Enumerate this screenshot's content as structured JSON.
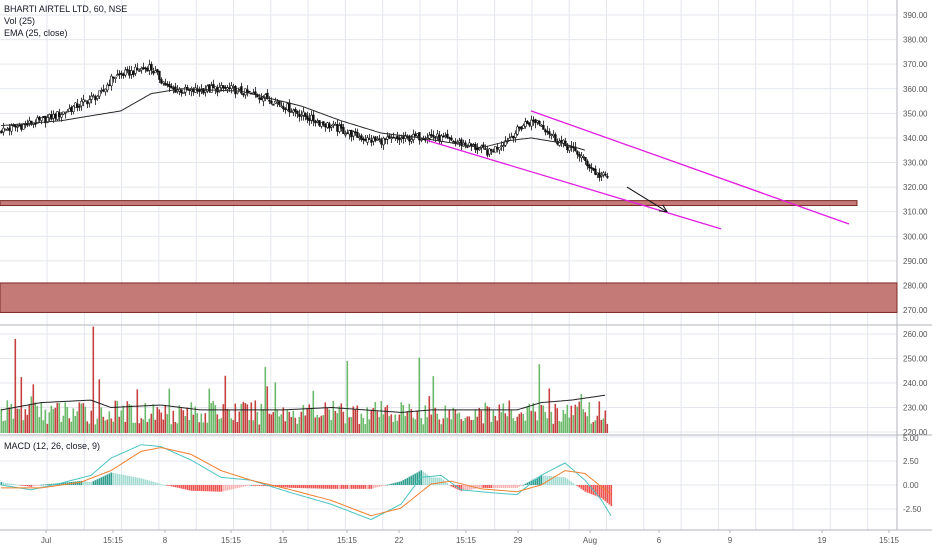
{
  "header": {
    "symbol_line": "BHARTI AIRTEL LTD, 60, NSE",
    "volume_label": "Vol (25)",
    "ema_label": "EMA (25, close)",
    "macd_label": "MACD (12, 26, close, 9)"
  },
  "colors": {
    "up": "#6cb96c",
    "down": "#c4413f",
    "ema": "#2a2a2a",
    "channel": "#e21ce0",
    "zone_fill": "#c47a76",
    "zone_border": "#7a2a28",
    "macd_line": "#4cc3c2",
    "signal_line": "#ef7f2f",
    "grid": "#e4e7ee",
    "axis_text": "#555555"
  },
  "chart_data": [
    {
      "type": "candlestick",
      "title": "BHARTI AIRTEL LTD, 60, NSE",
      "ylim": [
        255,
        394
      ],
      "y_ticks": [
        390,
        380,
        370,
        360,
        350,
        340,
        330,
        320,
        310,
        300,
        290,
        280,
        270
      ],
      "y_tick_labels": [
        "390.00",
        "380.00",
        "370.00",
        "360.00",
        "350.00",
        "340.00",
        "330.00",
        "320.00",
        "310.00",
        "300.00",
        "290.00",
        "280.00",
        "270.00"
      ],
      "x_tick_labels": [
        "Jul",
        "15:15",
        "8",
        "15:15",
        "15",
        "15:15",
        "22",
        "15:15",
        "29",
        "Aug",
        "6",
        "9",
        "19",
        "15:15"
      ],
      "close_anchors": [
        [
          0,
          343
        ],
        [
          10,
          345
        ],
        [
          20,
          347
        ],
        [
          30,
          350
        ],
        [
          40,
          354
        ],
        [
          50,
          358
        ],
        [
          56,
          365
        ],
        [
          66,
          367
        ],
        [
          74,
          369
        ],
        [
          84,
          360
        ],
        [
          94,
          359
        ],
        [
          104,
          360
        ],
        [
          114,
          360
        ],
        [
          124,
          358
        ],
        [
          134,
          356
        ],
        [
          144,
          352
        ],
        [
          154,
          348
        ],
        [
          164,
          345
        ],
        [
          174,
          342
        ],
        [
          184,
          339
        ],
        [
          194,
          339
        ],
        [
          204,
          340
        ],
        [
          214,
          341
        ],
        [
          224,
          339
        ],
        [
          234,
          337
        ],
        [
          244,
          334
        ],
        [
          254,
          340
        ],
        [
          262,
          346
        ],
        [
          268,
          347
        ],
        [
          278,
          339
        ],
        [
          288,
          334
        ],
        [
          298,
          325
        ],
        [
          303,
          324
        ]
      ],
      "ema_anchors": [
        [
          0,
          345
        ],
        [
          30,
          347
        ],
        [
          60,
          351
        ],
        [
          75,
          358
        ],
        [
          90,
          360
        ],
        [
          120,
          359
        ],
        [
          150,
          353
        ],
        [
          170,
          347
        ],
        [
          190,
          342
        ],
        [
          210,
          340
        ],
        [
          240,
          336
        ],
        [
          255,
          339
        ],
        [
          265,
          340
        ],
        [
          280,
          338
        ],
        [
          292,
          335
        ]
      ],
      "levels": [
        {
          "name": "resistance-band",
          "from": 312.5,
          "to": 314.5
        },
        {
          "name": "support-zone",
          "from": 269,
          "to": 281
        }
      ],
      "channel_lines": [
        {
          "from": [
            265,
            351
          ],
          "to": [
            424,
            305
          ]
        },
        {
          "from": [
            213,
            339
          ],
          "to": [
            360,
            303
          ]
        }
      ],
      "annotation_arrow": {
        "from": [
          313,
          320
        ],
        "to": [
          333,
          310
        ]
      }
    },
    {
      "type": "bar",
      "name": "Volume",
      "y_ticks": [
        260,
        250,
        240,
        230,
        220
      ],
      "y_tick_labels": [
        "260.00",
        "250.00",
        "240.00",
        "230.00",
        "220.00"
      ],
      "ylim": [
        220,
        265
      ],
      "volume_ma_anchors": [
        [
          0,
          229
        ],
        [
          20,
          232
        ],
        [
          45,
          233
        ],
        [
          55,
          230
        ],
        [
          80,
          231
        ],
        [
          100,
          229
        ],
        [
          140,
          229
        ],
        [
          165,
          230
        ],
        [
          200,
          228
        ],
        [
          215,
          229
        ],
        [
          240,
          229
        ],
        [
          258,
          229
        ],
        [
          270,
          232
        ],
        [
          285,
          233
        ],
        [
          302,
          235
        ]
      ]
    },
    {
      "type": "line",
      "name": "MACD",
      "y_ticks": [
        5.0,
        2.5,
        0.0,
        -2.5
      ],
      "y_tick_labels": [
        "5.00",
        "2.50",
        "0.00",
        "-2.50"
      ],
      "ylim": [
        -4.6,
        5.0
      ],
      "macd_anchors": [
        [
          0,
          0
        ],
        [
          15,
          -0.5
        ],
        [
          30,
          0.2
        ],
        [
          45,
          1.0
        ],
        [
          55,
          2.8
        ],
        [
          70,
          4.2
        ],
        [
          80,
          4.0
        ],
        [
          95,
          2.6
        ],
        [
          110,
          0.8
        ],
        [
          125,
          0.5
        ],
        [
          145,
          -0.8
        ],
        [
          165,
          -2.0
        ],
        [
          185,
          -3.6
        ],
        [
          200,
          -2.0
        ],
        [
          210,
          0.8
        ],
        [
          220,
          1.0
        ],
        [
          230,
          -0.5
        ],
        [
          245,
          -0.8
        ],
        [
          258,
          -1.0
        ],
        [
          270,
          1.0
        ],
        [
          282,
          2.3
        ],
        [
          292,
          0.5
        ],
        [
          300,
          -1.5
        ],
        [
          305,
          -3.2
        ]
      ],
      "signal_anchors": [
        [
          0,
          -0.3
        ],
        [
          20,
          -0.3
        ],
        [
          40,
          0.3
        ],
        [
          55,
          1.5
        ],
        [
          70,
          3.5
        ],
        [
          80,
          3.9
        ],
        [
          95,
          3.2
        ],
        [
          110,
          1.5
        ],
        [
          125,
          0.5
        ],
        [
          145,
          -0.5
        ],
        [
          165,
          -1.6
        ],
        [
          185,
          -3.2
        ],
        [
          200,
          -2.4
        ],
        [
          215,
          0.1
        ],
        [
          225,
          0.4
        ],
        [
          240,
          -0.4
        ],
        [
          258,
          -0.7
        ],
        [
          270,
          0.0
        ],
        [
          282,
          1.5
        ],
        [
          292,
          1.2
        ],
        [
          305,
          -1.0
        ]
      ]
    }
  ]
}
